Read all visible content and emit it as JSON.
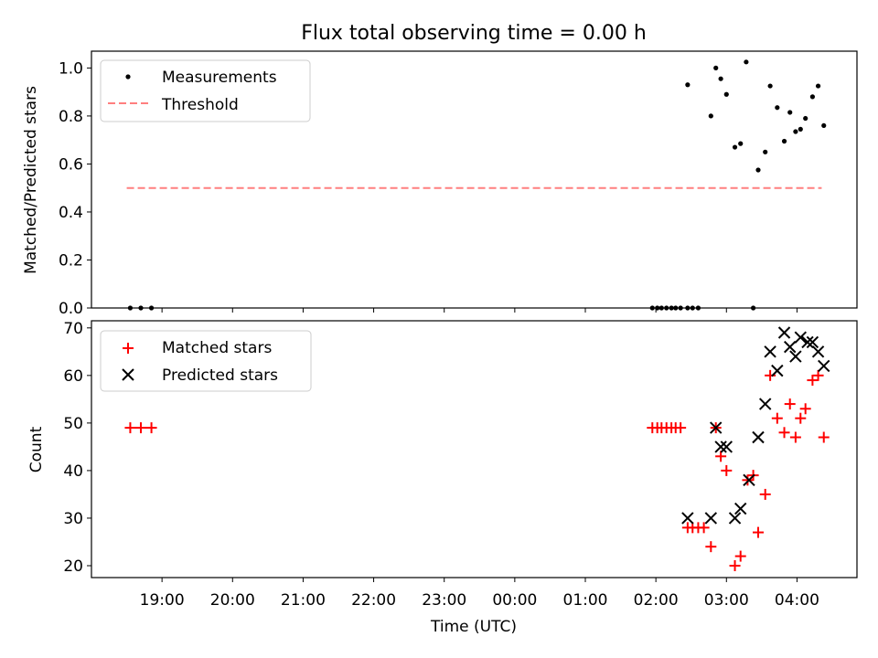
{
  "chart_data": [
    {
      "type": "scatter",
      "title": "Flux total observing time = 0.00 h",
      "ylabel": "Matched/Predicted stars",
      "xlabel": "",
      "x_unit": "hours (18 = 18:00 UTC, 28 = 04:00 UTC next day)",
      "xlim": [
        18.0,
        28.85
      ],
      "ylim": [
        0,
        1.07
      ],
      "yticks": [
        0.0,
        0.2,
        0.4,
        0.6,
        0.8,
        1.0
      ],
      "ytick_labels": [
        "0.0",
        "0.2",
        "0.4",
        "0.6",
        "0.8",
        "1.0"
      ],
      "legend_position": "upper-left",
      "series": [
        {
          "name": "Measurements",
          "marker": "dot",
          "color": "#000000",
          "x": [
            18.55,
            18.7,
            18.85,
            25.95,
            26.02,
            26.08,
            26.15,
            26.22,
            26.28,
            26.35,
            26.45,
            26.52,
            26.6,
            26.45,
            26.78,
            26.85,
            26.92,
            27.0,
            27.12,
            27.2,
            27.28,
            27.38,
            27.45,
            27.55,
            27.62,
            27.72,
            27.82,
            27.9,
            27.98,
            28.05,
            28.12,
            28.22,
            28.3,
            28.38
          ],
          "y": [
            0,
            0,
            0,
            0,
            0,
            0,
            0,
            0,
            0,
            0,
            0,
            0,
            0,
            0.93,
            0.8,
            1.0,
            0.955,
            0.89,
            0.67,
            0.685,
            1.025,
            0,
            0.575,
            0.65,
            0.925,
            0.835,
            0.695,
            0.815,
            0.735,
            0.745,
            0.79,
            0.88,
            0.925,
            0.76
          ]
        },
        {
          "name": "Threshold",
          "style": "dashed",
          "color": "#ff7f7f",
          "x": [
            18.5,
            28.35
          ],
          "y": [
            0.5,
            0.5
          ]
        }
      ]
    },
    {
      "type": "scatter",
      "title": "",
      "ylabel": "Count",
      "xlabel": "Time (UTC)",
      "xlim": [
        18.0,
        28.85
      ],
      "ylim": [
        17.5,
        71.5
      ],
      "yticks": [
        20,
        30,
        40,
        50,
        60,
        70
      ],
      "ytick_labels": [
        "20",
        "30",
        "40",
        "50",
        "60",
        "70"
      ],
      "xticks": [
        19,
        20,
        21,
        22,
        23,
        24,
        25,
        26,
        27,
        28
      ],
      "xtick_labels": [
        "19:00",
        "20:00",
        "21:00",
        "22:00",
        "23:00",
        "00:00",
        "01:00",
        "02:00",
        "03:00",
        "04:00"
      ],
      "legend_position": "upper-left",
      "series": [
        {
          "name": "Matched stars",
          "marker": "plus",
          "color": "#ff0000",
          "x": [
            18.55,
            18.7,
            18.85,
            25.95,
            26.02,
            26.08,
            26.15,
            26.22,
            26.28,
            26.35,
            26.45,
            26.52,
            26.6,
            26.68,
            26.78,
            26.85,
            26.92,
            27.0,
            27.12,
            27.2,
            27.3,
            27.38,
            27.45,
            27.55,
            27.62,
            27.72,
            27.82,
            27.9,
            27.98,
            28.05,
            28.12,
            28.22,
            28.3,
            28.38
          ],
          "y": [
            49,
            49,
            49,
            49,
            49,
            49,
            49,
            49,
            49,
            49,
            28,
            28,
            28,
            28,
            24,
            49,
            43,
            40,
            20,
            22,
            38,
            39,
            27,
            35,
            60,
            51,
            48,
            54,
            47,
            51,
            53,
            59,
            60,
            47
          ]
        },
        {
          "name": "Predicted stars",
          "marker": "x",
          "color": "#000000",
          "x": [
            26.45,
            26.78,
            26.85,
            26.92,
            27.0,
            27.12,
            27.2,
            27.32,
            27.45,
            27.55,
            27.62,
            27.72,
            27.82,
            27.9,
            27.98,
            28.05,
            28.15,
            28.22,
            28.3,
            28.38
          ],
          "y": [
            30,
            30,
            49,
            45,
            45,
            30,
            32,
            38,
            47,
            54,
            65,
            61,
            69,
            66,
            64,
            68,
            67,
            67,
            65,
            62
          ]
        }
      ]
    }
  ]
}
